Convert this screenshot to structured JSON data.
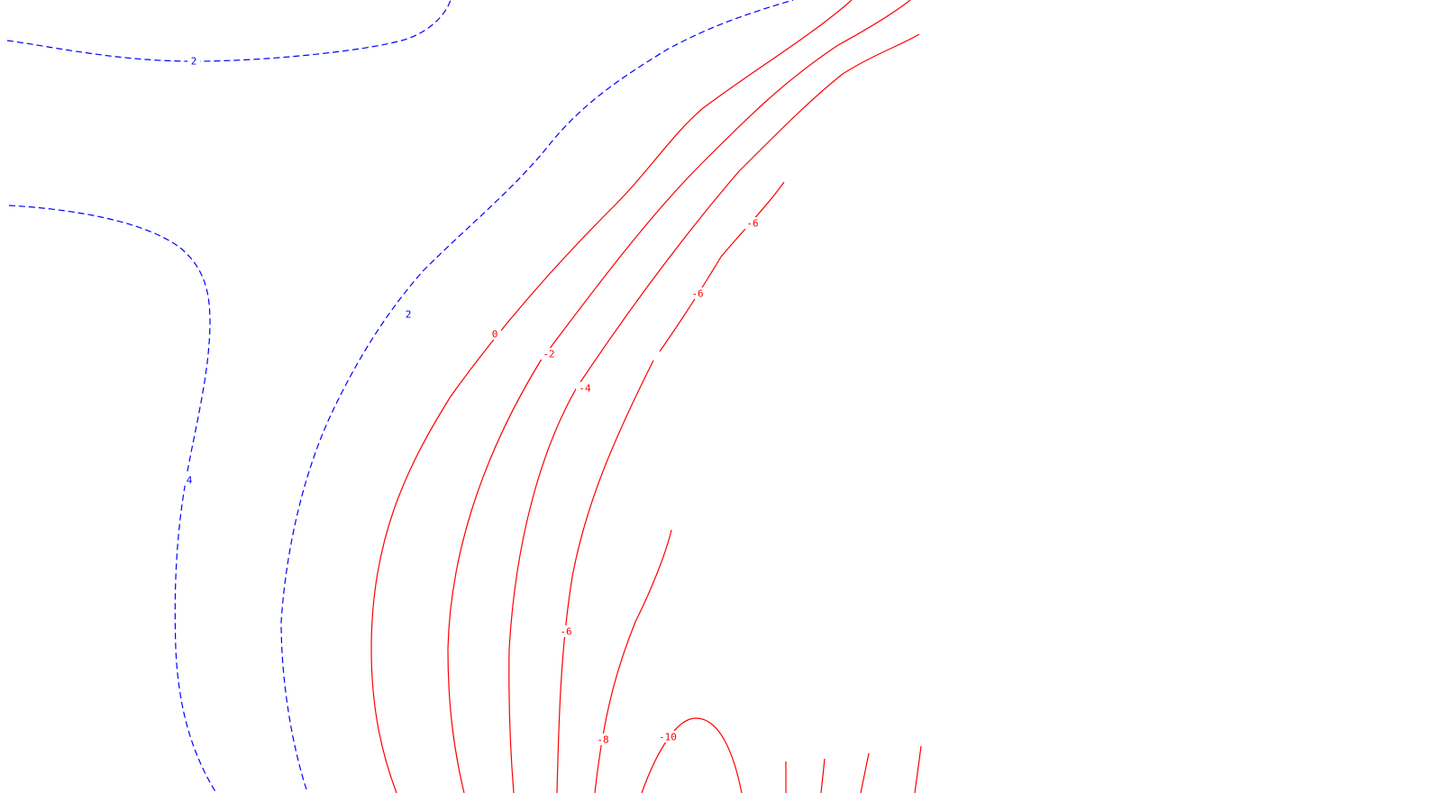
{
  "colors": {
    "background": "#ffffff",
    "positive_contour": "#0000ff",
    "negative_contour": "#ff0000"
  },
  "contours": {
    "positive": [
      {
        "level": 2,
        "label": "2"
      },
      {
        "level": 2,
        "label": "2"
      },
      {
        "level": 4,
        "label": "4"
      }
    ],
    "negative": [
      {
        "level": 0,
        "label": "0"
      },
      {
        "level": -2,
        "label": "-2"
      },
      {
        "level": -4,
        "label": "-4"
      },
      {
        "level": -6,
        "label": "-6"
      },
      {
        "level": -6,
        "label": "-6"
      },
      {
        "level": -6,
        "label": "-6"
      },
      {
        "level": -8,
        "label": "-8"
      },
      {
        "level": -10,
        "label": "-10"
      }
    ]
  }
}
